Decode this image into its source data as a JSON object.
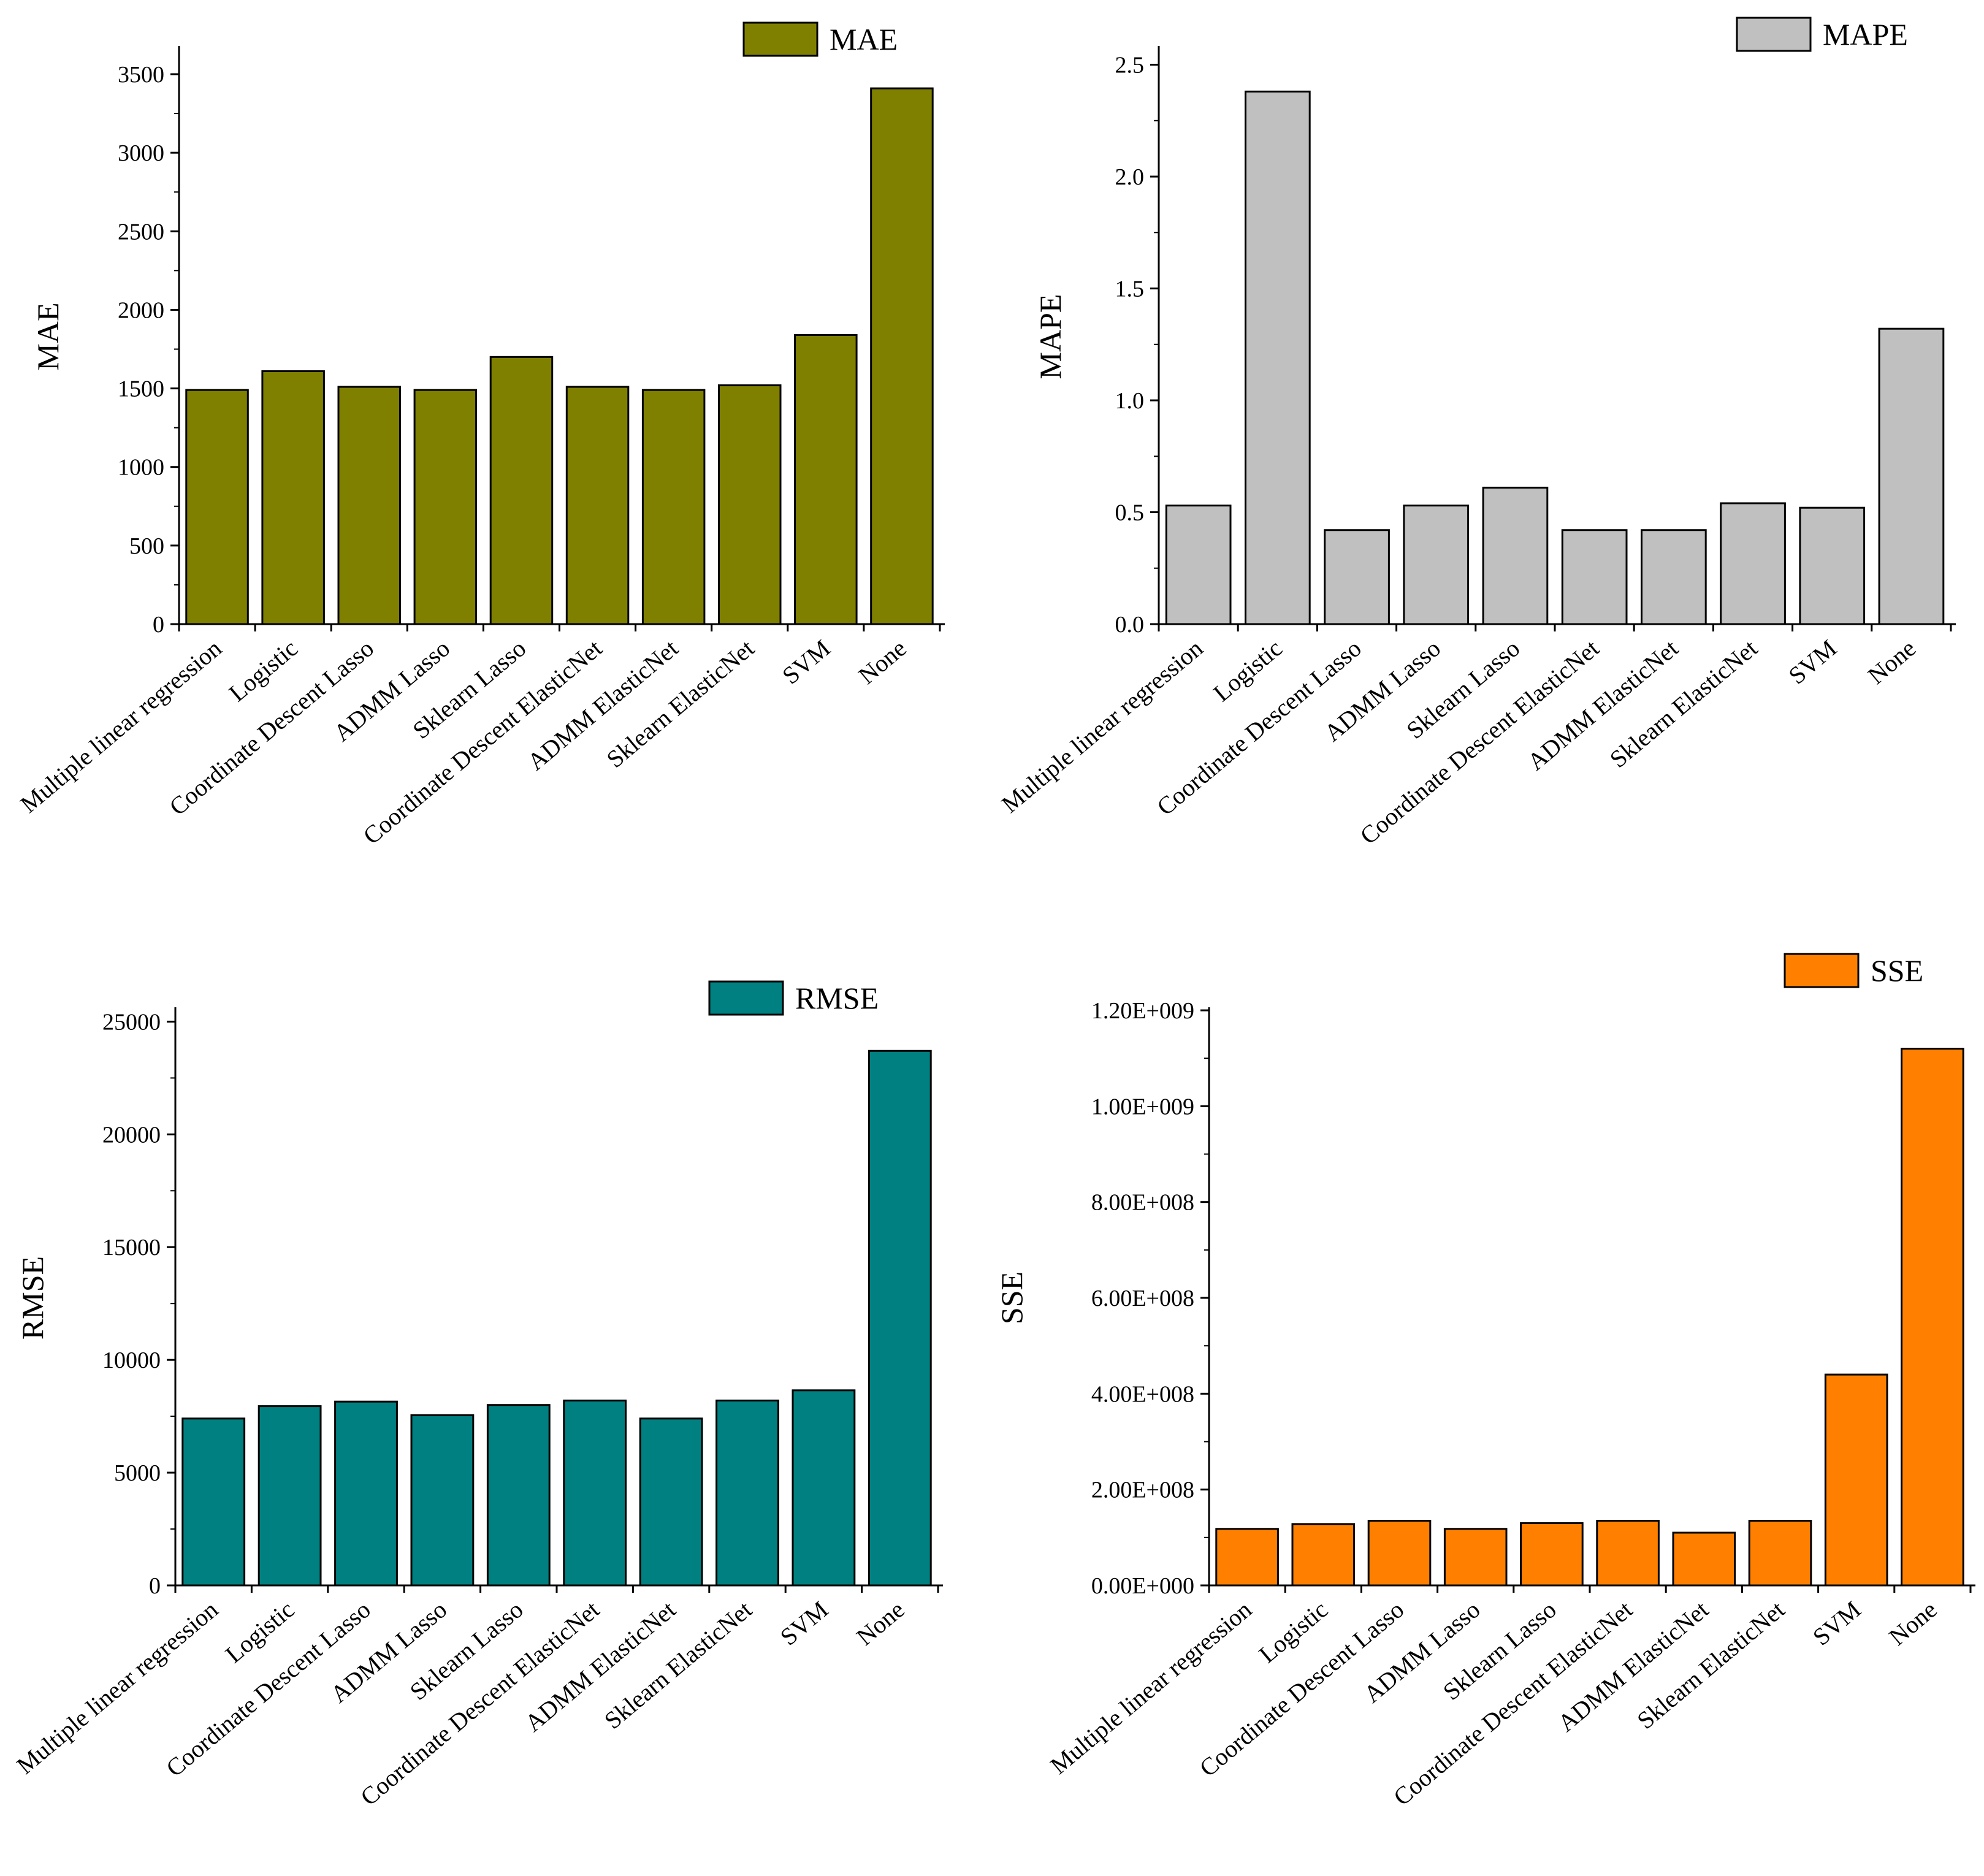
{
  "colors": {
    "mae": "#808000",
    "mape": "#c0c0c0",
    "rmse": "#008080",
    "sse": "#ff8000",
    "outline": "#000000"
  },
  "chart_data": [
    {
      "id": "mae",
      "type": "bar",
      "categories": [
        "Multiple linear regression",
        "Logistic",
        "Coordinate Descent Lasso",
        "ADMM Lasso",
        "Sklearn Lasso",
        "Coordinate Descent ElasticNet",
        "ADMM ElasticNet",
        "Sklearn ElasticNet",
        "SVM",
        "None"
      ],
      "series": [
        {
          "name": "MAE",
          "values": [
            1490,
            1610,
            1510,
            1490,
            1700,
            1510,
            1490,
            1520,
            1840,
            3410
          ]
        }
      ],
      "ylabel": "MAE",
      "ylim": [
        0,
        3660
      ],
      "yticks": [
        0,
        500,
        1000,
        1500,
        2000,
        2500,
        3000,
        3500
      ],
      "ytick_labels": [
        "0",
        "500",
        "1000",
        "1500",
        "2000",
        "2500",
        "3000",
        "3500"
      ],
      "legend": "top-right",
      "grid": false
    },
    {
      "id": "mape",
      "type": "bar",
      "categories": [
        "Multiple linear regression",
        "Logistic",
        "Coordinate Descent Lasso",
        "ADMM Lasso",
        "Sklearn Lasso",
        "Coordinate Descent ElasticNet",
        "ADMM ElasticNet",
        "Sklearn ElasticNet",
        "SVM",
        "None"
      ],
      "series": [
        {
          "name": "MAPE",
          "values": [
            0.53,
            2.38,
            0.42,
            0.53,
            0.61,
            0.42,
            0.42,
            0.54,
            0.52,
            1.32
          ]
        }
      ],
      "ylabel": "MAPE",
      "ylim": [
        0,
        2.57
      ],
      "yticks": [
        0,
        0.5,
        1.0,
        1.5,
        2.0,
        2.5
      ],
      "ytick_labels": [
        "0.0",
        "0.5",
        "1.0",
        "1.5",
        "2.0",
        "2.5"
      ],
      "legend": "top-right",
      "grid": false
    },
    {
      "id": "rmse",
      "type": "bar",
      "categories": [
        "Multiple linear regression",
        "Logistic",
        "Coordinate Descent Lasso",
        "ADMM Lasso",
        "Sklearn Lasso",
        "Coordinate Descent ElasticNet",
        "ADMM ElasticNet",
        "Sklearn ElasticNet",
        "SVM",
        "None"
      ],
      "series": [
        {
          "name": "RMSE",
          "values": [
            7400,
            7950,
            8150,
            7550,
            8000,
            8200,
            7400,
            8200,
            8650,
            23700
          ]
        }
      ],
      "ylabel": "RMSE",
      "ylim": [
        0,
        25500
      ],
      "yticks": [
        0,
        5000,
        10000,
        15000,
        20000,
        25000
      ],
      "ytick_labels": [
        "0",
        "5000",
        "10000",
        "15000",
        "20000",
        "25000"
      ],
      "legend": "top-right",
      "grid": false
    },
    {
      "id": "sse",
      "type": "bar",
      "categories": [
        "Multiple linear regression",
        "Logistic",
        "Coordinate Descent Lasso",
        "ADMM Lasso",
        "Sklearn Lasso",
        "Coordinate Descent ElasticNet",
        "ADMM ElasticNet",
        "Sklearn ElasticNet",
        "SVM",
        "None"
      ],
      "series": [
        {
          "name": "SSE",
          "values": [
            118000000,
            128000000,
            135000000,
            118000000,
            130000000,
            135000000,
            110000000,
            135000000,
            440000000,
            1120000000
          ]
        }
      ],
      "ylabel": "SSE",
      "ylim": [
        0,
        1200000000
      ],
      "yticks": [
        0,
        200000000,
        400000000,
        600000000,
        800000000,
        1000000000,
        1200000000
      ],
      "ytick_labels": [
        "0.00E+000",
        "2.00E+008",
        "4.00E+008",
        "6.00E+008",
        "8.00E+008",
        "1.00E+009",
        "1.20E+009"
      ],
      "legend": "top-right",
      "grid": false
    }
  ]
}
